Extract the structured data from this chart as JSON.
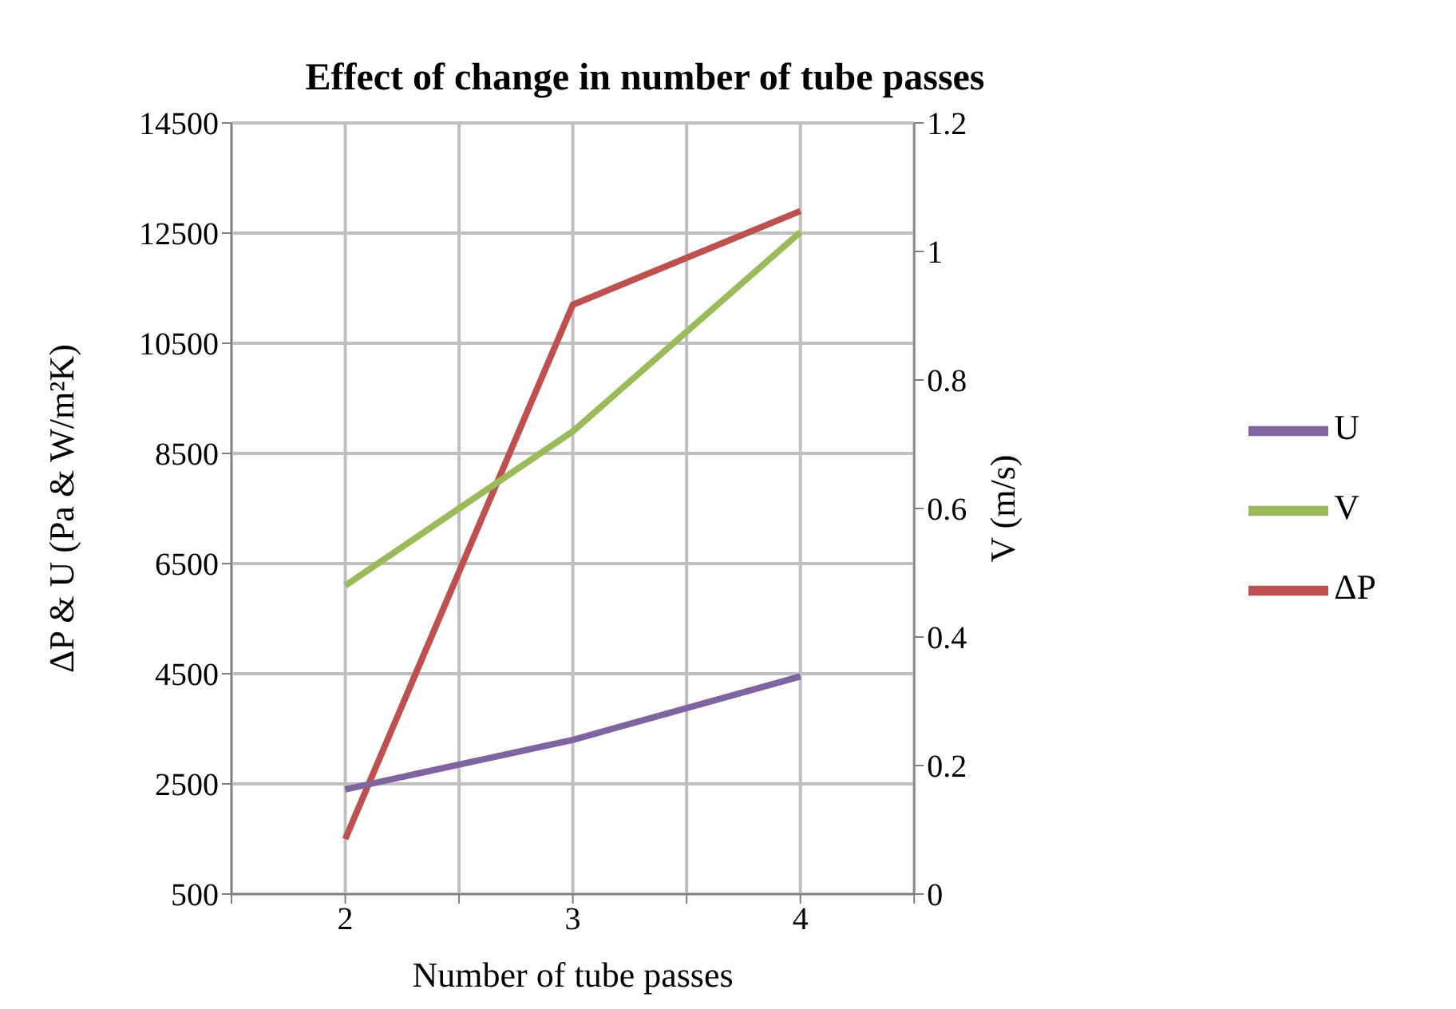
{
  "chart_data": {
    "type": "line",
    "title": "Effect of change in number of tube passes",
    "xlabel": "Number of tube passes",
    "ylabel": "ΔP & U (Pa & W/m²K)",
    "y2label": "V (m/s)",
    "x": [
      2,
      3,
      4
    ],
    "xlim": [
      1.5,
      4.5
    ],
    "xticks": [
      {
        "value": 1.5,
        "label": null
      },
      2,
      {
        "value": 2.5,
        "label": null
      },
      3,
      {
        "value": 3.5,
        "label": null
      },
      4,
      {
        "value": 4.5,
        "label": null
      }
    ],
    "ylim": [
      500,
      14500
    ],
    "yticks": [
      500,
      2500,
      4500,
      6500,
      8500,
      10500,
      12500,
      14500
    ],
    "y2lim": [
      0,
      1.2
    ],
    "y2ticks": [
      0,
      0.2,
      0.4,
      0.6,
      0.8,
      1,
      1.2
    ],
    "series": [
      {
        "name": "ΔP",
        "color": "#c0504d",
        "values": [
          1500,
          11200,
          12900
        ]
      },
      {
        "name": "U",
        "color": "#8064a2",
        "values": [
          2400,
          3300,
          4450
        ]
      },
      {
        "name": "V",
        "color": "#9bbb59",
        "values": [
          0.48,
          0.72,
          1.03
        ],
        "axis": "y2"
      }
    ],
    "grid": true,
    "legend": "right",
    "marker": "none",
    "line_style": "solid"
  }
}
